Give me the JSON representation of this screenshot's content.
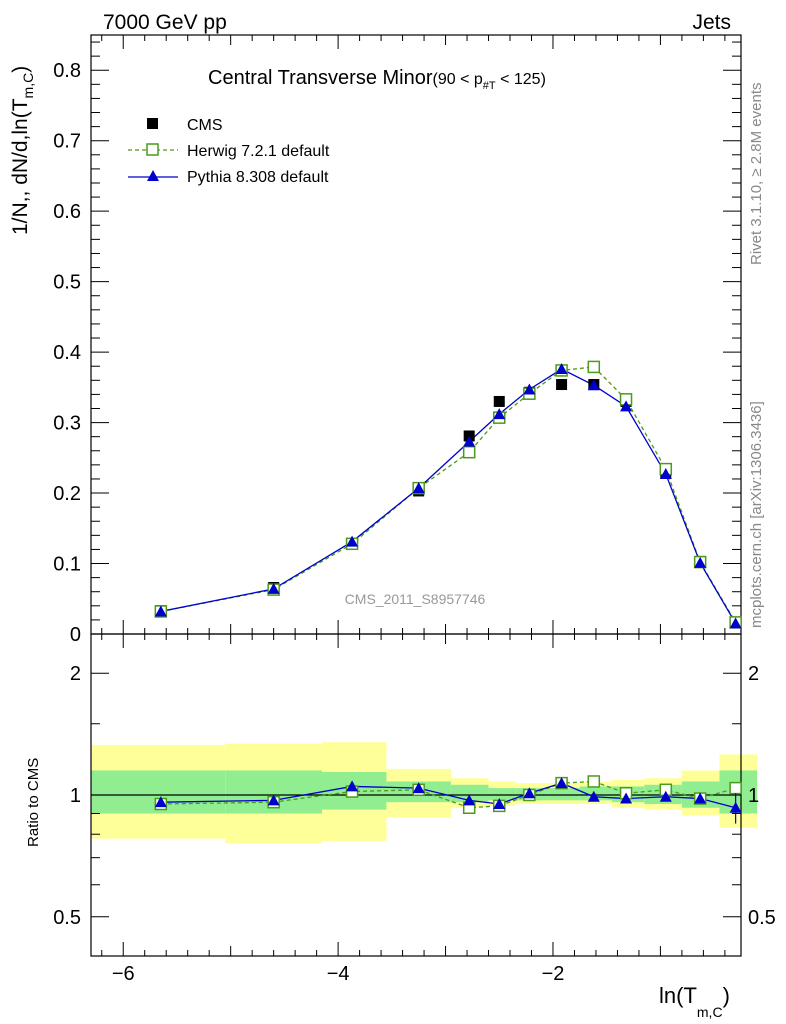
{
  "header": {
    "left": "7000 GeV pp",
    "right": "Jets"
  },
  "side_labels": {
    "rivet": "Rivet 3.1.10, ≥ 2.8M events",
    "mcplots": "mcplots.cern.ch [arXiv:1306.3436]"
  },
  "watermark": "CMS_2011_S8957746",
  "chart_data": {
    "type": "scatter",
    "title_main": "Central Transverse Minor",
    "title_suffix": "(90 < p",
    "title_sub": "#T",
    "title_end": " < 125)",
    "ylabel_main": "1/N",
    "ylabel_mid": ",, dN/d,ln(T",
    "ylabel_sub": "m,C",
    "ylabel_end": ")",
    "xlabel_main": "ln(T",
    "xlabel_sub": "m,C",
    "xlabel_end": ")",
    "ratio_ylabel": "Ratio to CMS",
    "xlim": [
      -6.3,
      -0.25
    ],
    "ylim": [
      0,
      0.85
    ],
    "ratio_ylim": [
      0.4,
      2.5
    ],
    "ratio_scale": "log",
    "x_ticks": [
      -6,
      -4,
      -2
    ],
    "x_tick_labels": [
      "−6",
      "−4",
      "−2"
    ],
    "y_ticks": [
      0,
      0.1,
      0.2,
      0.3,
      0.4,
      0.5,
      0.6,
      0.7,
      0.8
    ],
    "y_tick_labels": [
      "0",
      "0.1",
      "0.2",
      "0.3",
      "0.4",
      "0.5",
      "0.6",
      "0.7",
      "0.8"
    ],
    "ratio_ticks": [
      0.5,
      1,
      2
    ],
    "ratio_tick_labels": [
      "0.5",
      "1",
      "2"
    ],
    "legend_position": "top-left",
    "series": [
      {
        "name": "CMS",
        "color": "#000000",
        "marker": "square-filled",
        "x": [
          -5.65,
          -4.6,
          -3.87,
          -3.25,
          -2.78,
          -2.5,
          -2.22,
          -1.92,
          -1.62,
          -1.32,
          -0.95,
          -0.63,
          -0.3
        ],
        "y": [
          0.033,
          0.066,
          0.128,
          0.203,
          0.281,
          0.33,
          0.343,
          0.354,
          0.354,
          0.33,
          0.228,
          0.103,
          0.016
        ]
      },
      {
        "name": "Herwig 7.2.1 default",
        "color": "#4b9a1a",
        "marker": "square-open",
        "line": "dashed",
        "x": [
          -5.65,
          -4.6,
          -3.87,
          -3.25,
          -2.78,
          -2.5,
          -2.22,
          -1.92,
          -1.62,
          -1.32,
          -0.95,
          -0.63,
          -0.3
        ],
        "y": [
          0.032,
          0.063,
          0.128,
          0.207,
          0.258,
          0.307,
          0.341,
          0.374,
          0.379,
          0.333,
          0.234,
          0.102,
          0.0165
        ],
        "ratio": [
          0.95,
          0.96,
          1.02,
          1.03,
          0.93,
          0.94,
          1.0,
          1.07,
          1.08,
          1.01,
          1.03,
          0.98,
          1.04
        ]
      },
      {
        "name": "Pythia 8.308 default",
        "color": "#0000cc",
        "marker": "triangle-filled",
        "line": "solid",
        "x": [
          -5.65,
          -4.6,
          -3.87,
          -3.25,
          -2.78,
          -2.5,
          -2.22,
          -1.92,
          -1.62,
          -1.32,
          -0.95,
          -0.63,
          -0.3
        ],
        "y": [
          0.032,
          0.064,
          0.131,
          0.207,
          0.273,
          0.312,
          0.347,
          0.376,
          0.353,
          0.323,
          0.227,
          0.101,
          0.015
        ],
        "ratio": [
          0.96,
          0.97,
          1.05,
          1.04,
          0.97,
          0.95,
          1.01,
          1.07,
          0.99,
          0.98,
          0.99,
          0.98,
          0.93
        ],
        "ratio_err": [
          0,
          0,
          0,
          0,
          0,
          0,
          0,
          0,
          0,
          0,
          0,
          0,
          0.08
        ]
      }
    ],
    "uncertainty_bands": {
      "bin_edges": [
        -6.3,
        -5.05,
        -4.15,
        -3.55,
        -2.95,
        -2.6,
        -2.35,
        -2.05,
        -1.75,
        -1.45,
        -1.15,
        -0.8,
        -0.45,
        -0.1
      ],
      "inner": [
        [
          0.9,
          1.15
        ],
        [
          0.9,
          1.15
        ],
        [
          0.92,
          1.14
        ],
        [
          0.96,
          1.08
        ],
        [
          0.96,
          1.06
        ],
        [
          0.97,
          1.04
        ],
        [
          0.97,
          1.04
        ],
        [
          0.97,
          1.04
        ],
        [
          0.97,
          1.05
        ],
        [
          0.96,
          1.05
        ],
        [
          0.95,
          1.06
        ],
        [
          0.93,
          1.08
        ],
        [
          0.9,
          1.15
        ]
      ],
      "outer": [
        [
          0.78,
          1.33
        ],
        [
          0.76,
          1.34
        ],
        [
          0.77,
          1.35
        ],
        [
          0.88,
          1.16
        ],
        [
          0.93,
          1.1
        ],
        [
          0.94,
          1.08
        ],
        [
          0.95,
          1.07
        ],
        [
          0.95,
          1.07
        ],
        [
          0.95,
          1.08
        ],
        [
          0.93,
          1.09
        ],
        [
          0.92,
          1.1
        ],
        [
          0.89,
          1.15
        ],
        [
          0.83,
          1.26
        ]
      ],
      "inner_color": "#90ee90",
      "outer_color": "#ffff99"
    }
  }
}
